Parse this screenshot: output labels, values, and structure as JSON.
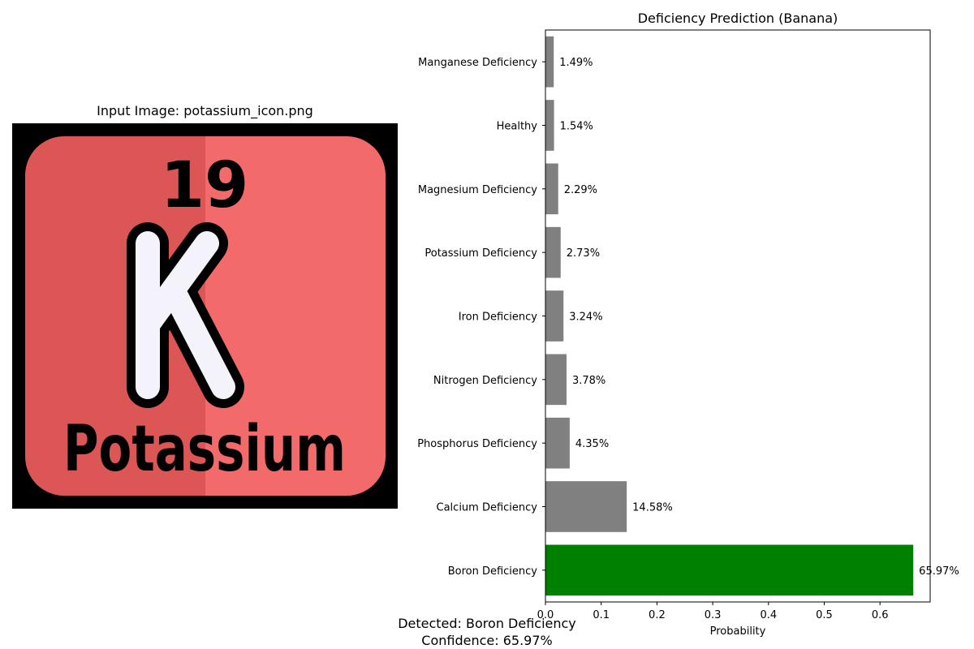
{
  "input_panel": {
    "title": "Input Image: potassium_icon.png",
    "icon": {
      "name": "potassium-element-icon",
      "atomic_number": "19",
      "symbol": "K",
      "element_name": "Potassium",
      "colors": {
        "background": "#000000",
        "tile_left": "#dd5656",
        "tile_right": "#f26a6a",
        "letter_fill": "#f4f2fb",
        "ink": "#000000"
      }
    }
  },
  "chart_data": {
    "type": "bar",
    "orientation": "horizontal",
    "title": "Deficiency Prediction (Banana)",
    "xlabel": "Probability",
    "ylabel": "",
    "xlim": [
      0,
      0.69
    ],
    "xticks": [
      0,
      0.1,
      0.2,
      0.3,
      0.4,
      0.5,
      0.6
    ],
    "xtick_labels": [
      "0.0",
      "0.1",
      "0.2",
      "0.3",
      "0.4",
      "0.5",
      "0.6"
    ],
    "grid": false,
    "categories": [
      "Boron Deficiency",
      "Calcium Deficiency",
      "Phosphorus Deficiency",
      "Nitrogen Deficiency",
      "Iron Deficiency",
      "Potassium Deficiency",
      "Magnesium Deficiency",
      "Healthy",
      "Manganese Deficiency"
    ],
    "values": [
      0.6597,
      0.1458,
      0.0435,
      0.0378,
      0.0324,
      0.0273,
      0.0229,
      0.0154,
      0.0149
    ],
    "data_labels": [
      "65.97%",
      "14.58%",
      "4.35%",
      "3.78%",
      "3.24%",
      "2.73%",
      "2.29%",
      "1.54%",
      "1.49%"
    ],
    "colors": {
      "highlight": "#008000",
      "default": "#808080"
    },
    "highlight_index": 0
  },
  "footer": {
    "detected": "Detected: Boron Deficiency",
    "confidence": "Confidence: 65.97%"
  }
}
